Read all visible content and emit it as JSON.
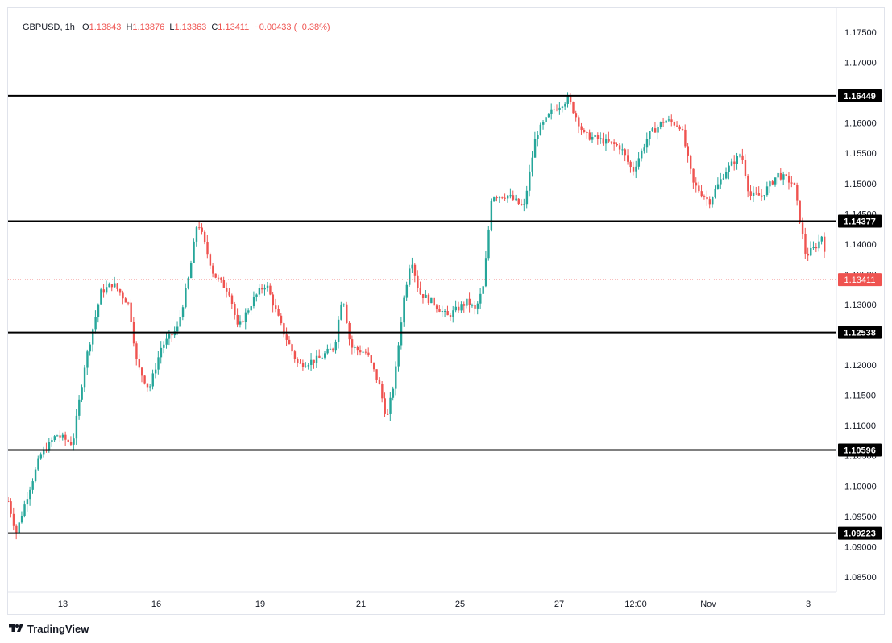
{
  "legend": {
    "symbol": "GBPUSD",
    "interval": "1h",
    "open_label": "O",
    "open": "1.13843",
    "high_label": "H",
    "high": "1.13876",
    "low_label": "L",
    "low": "1.13363",
    "close_label": "C",
    "close": "1.13411",
    "change": "−0.00433",
    "change_pct": "(−0.38%)"
  },
  "branding": {
    "name": "TradingView",
    "logo_icon": "tradingview-logo-icon"
  },
  "colors": {
    "up": "#26a69a",
    "down": "#ef5350",
    "level_line": "#000000",
    "grid": "#ffffff",
    "axis_text": "#131722"
  },
  "chart_data": {
    "type": "candlestick",
    "symbol": "GBPUSD",
    "interval": "1h",
    "ylim": [
      1.08,
      1.18
    ],
    "y_ticks": [
      "1.17500",
      "1.17000",
      "1.16500",
      "1.16000",
      "1.15500",
      "1.15000",
      "1.14500",
      "1.14000",
      "1.13500",
      "1.13000",
      "1.12500",
      "1.12000",
      "1.11500",
      "1.11000",
      "1.10500",
      "1.10000",
      "1.09500",
      "1.09000",
      "1.08500"
    ],
    "x_ticks": [
      "13",
      "16",
      "19",
      "21",
      "25",
      "27",
      "12:00",
      "Nov",
      "3"
    ],
    "horizontal_levels": [
      1.16449,
      1.14377,
      1.12538,
      1.10596,
      1.09223
    ],
    "level_labels": [
      "1.16449",
      "1.14377",
      "1.12538",
      "1.10596",
      "1.09223"
    ],
    "last_price": 1.13411,
    "last_price_label": "1.13411",
    "price_path": [
      [
        0,
        1.0975
      ],
      [
        0.01,
        1.0922
      ],
      [
        0.025,
        1.099
      ],
      [
        0.04,
        1.105
      ],
      [
        0.06,
        1.1085
      ],
      [
        0.08,
        1.107
      ],
      [
        0.095,
        1.12
      ],
      [
        0.115,
        1.132
      ],
      [
        0.13,
        1.1335
      ],
      [
        0.15,
        1.13
      ],
      [
        0.16,
        1.12
      ],
      [
        0.175,
        1.116
      ],
      [
        0.19,
        1.123
      ],
      [
        0.21,
        1.126
      ],
      [
        0.225,
        1.135
      ],
      [
        0.235,
        1.144
      ],
      [
        0.255,
        1.135
      ],
      [
        0.275,
        1.132
      ],
      [
        0.285,
        1.126
      ],
      [
        0.305,
        1.131
      ],
      [
        0.32,
        1.1335
      ],
      [
        0.34,
        1.126
      ],
      [
        0.36,
        1.12
      ],
      [
        0.385,
        1.121
      ],
      [
        0.405,
        1.123
      ],
      [
        0.415,
        1.132
      ],
      [
        0.425,
        1.123
      ],
      [
        0.445,
        1.122
      ],
      [
        0.46,
        1.117
      ],
      [
        0.47,
        1.111
      ],
      [
        0.48,
        1.118
      ],
      [
        0.49,
        1.13
      ],
      [
        0.5,
        1.138
      ],
      [
        0.51,
        1.132
      ],
      [
        0.53,
        1.13
      ],
      [
        0.545,
        1.128
      ],
      [
        0.57,
        1.1305
      ],
      [
        0.58,
        1.129
      ],
      [
        0.59,
        1.133
      ],
      [
        0.6,
        1.148
      ],
      [
        0.62,
        1.148
      ],
      [
        0.64,
        1.146
      ],
      [
        0.655,
        1.158
      ],
      [
        0.675,
        1.162
      ],
      [
        0.695,
        1.164
      ],
      [
        0.715,
        1.158
      ],
      [
        0.74,
        1.157
      ],
      [
        0.76,
        1.156
      ],
      [
        0.775,
        1.152
      ],
      [
        0.795,
        1.158
      ],
      [
        0.815,
        1.1605
      ],
      [
        0.835,
        1.1595
      ],
      [
        0.85,
        1.15
      ],
      [
        0.87,
        1.147
      ],
      [
        0.89,
        1.152
      ],
      [
        0.91,
        1.155
      ],
      [
        0.92,
        1.148
      ],
      [
        0.935,
        1.148
      ],
      [
        0.955,
        1.1515
      ],
      [
        0.975,
        1.15
      ],
      [
        0.99,
        1.138
      ],
      [
        1.005,
        1.14
      ],
      [
        1.01,
        1.1415
      ],
      [
        1.02,
        1.1341
      ]
    ]
  }
}
